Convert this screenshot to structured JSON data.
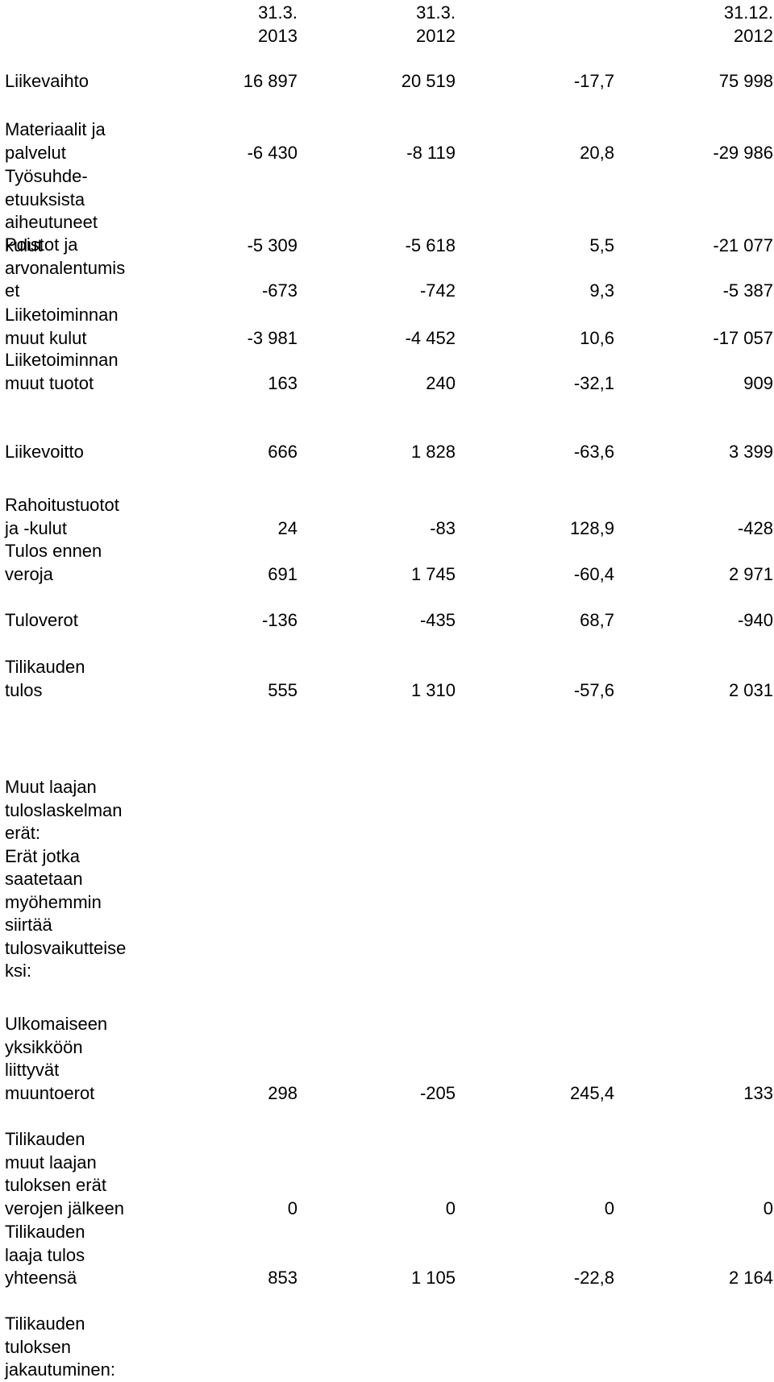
{
  "header": {
    "columns": [
      "31.3.\n2013",
      "31.3.\n2012",
      "",
      "31.12.\n2012"
    ]
  },
  "rows": [
    {
      "label": "Liikevaihto",
      "values": [
        "16 897",
        "20 519",
        "-17,7",
        "75 998"
      ]
    },
    {
      "label": "Materiaalit ja\npalvelut",
      "values": [
        "-6 430",
        "-8 119",
        "20,8",
        "-29 986"
      ]
    },
    {
      "label": "Työsuhde-\netuuksista\naiheutuneet\nkulut",
      "values": [
        "-5 309",
        "-5 618",
        "5,5",
        "-21 077"
      ]
    },
    {
      "label": "Poistot ja\narvonalentumis\net",
      "values": [
        "-673",
        "-742",
        "9,3",
        "-5 387"
      ]
    },
    {
      "label": "Liiketoiminnan\nmuut kulut",
      "values": [
        "-3 981",
        "-4 452",
        "10,6",
        "-17 057"
      ]
    },
    {
      "label": "Liiketoiminnan\nmuut tuotot",
      "values": [
        "163",
        "240",
        "-32,1",
        "909"
      ]
    },
    {
      "label": "Liikevoitto",
      "values": [
        "666",
        "1 828",
        "-63,6",
        "3 399"
      ]
    },
    {
      "label": "Rahoitustuotot\nja -kulut",
      "values": [
        "24",
        "-83",
        "128,9",
        "-428"
      ]
    },
    {
      "label": "Tulos ennen\nveroja",
      "values": [
        "691",
        "1 745",
        "-60,4",
        "2 971"
      ]
    },
    {
      "label": "Tuloverot",
      "values": [
        "-136",
        "-435",
        "68,7",
        "-940"
      ]
    },
    {
      "label": "Tilikauden\ntulos",
      "values": [
        "555",
        "1 310",
        "-57,6",
        "2 031"
      ]
    },
    {
      "label": "Muut laajan\ntuloslaskelman\nerät:\nErät jotka\nsaatetaan\nmyöhemmin\nsiirtää\ntulosvaikutteise\nksi:",
      "values": [
        "",
        "",
        "",
        ""
      ]
    },
    {
      "label": "Ulkomaiseen\nyksikköön\nliittyvät\nmuuntoerot",
      "values": [
        "298",
        "-205",
        "245,4",
        "133"
      ]
    },
    {
      "label": "Tilikauden\nmuut laajan\ntuloksen erät\nverojen jälkeen",
      "values": [
        "0",
        "0",
        "0",
        "0"
      ]
    },
    {
      "label": "Tilikauden\nlaaja tulos\nyhteensä",
      "values": [
        "853",
        "1 105",
        "-22,8",
        "2 164"
      ]
    },
    {
      "label": "Tilikauden\ntuloksen\njakautuminen:",
      "values": [
        "",
        "",
        "",
        ""
      ]
    }
  ]
}
